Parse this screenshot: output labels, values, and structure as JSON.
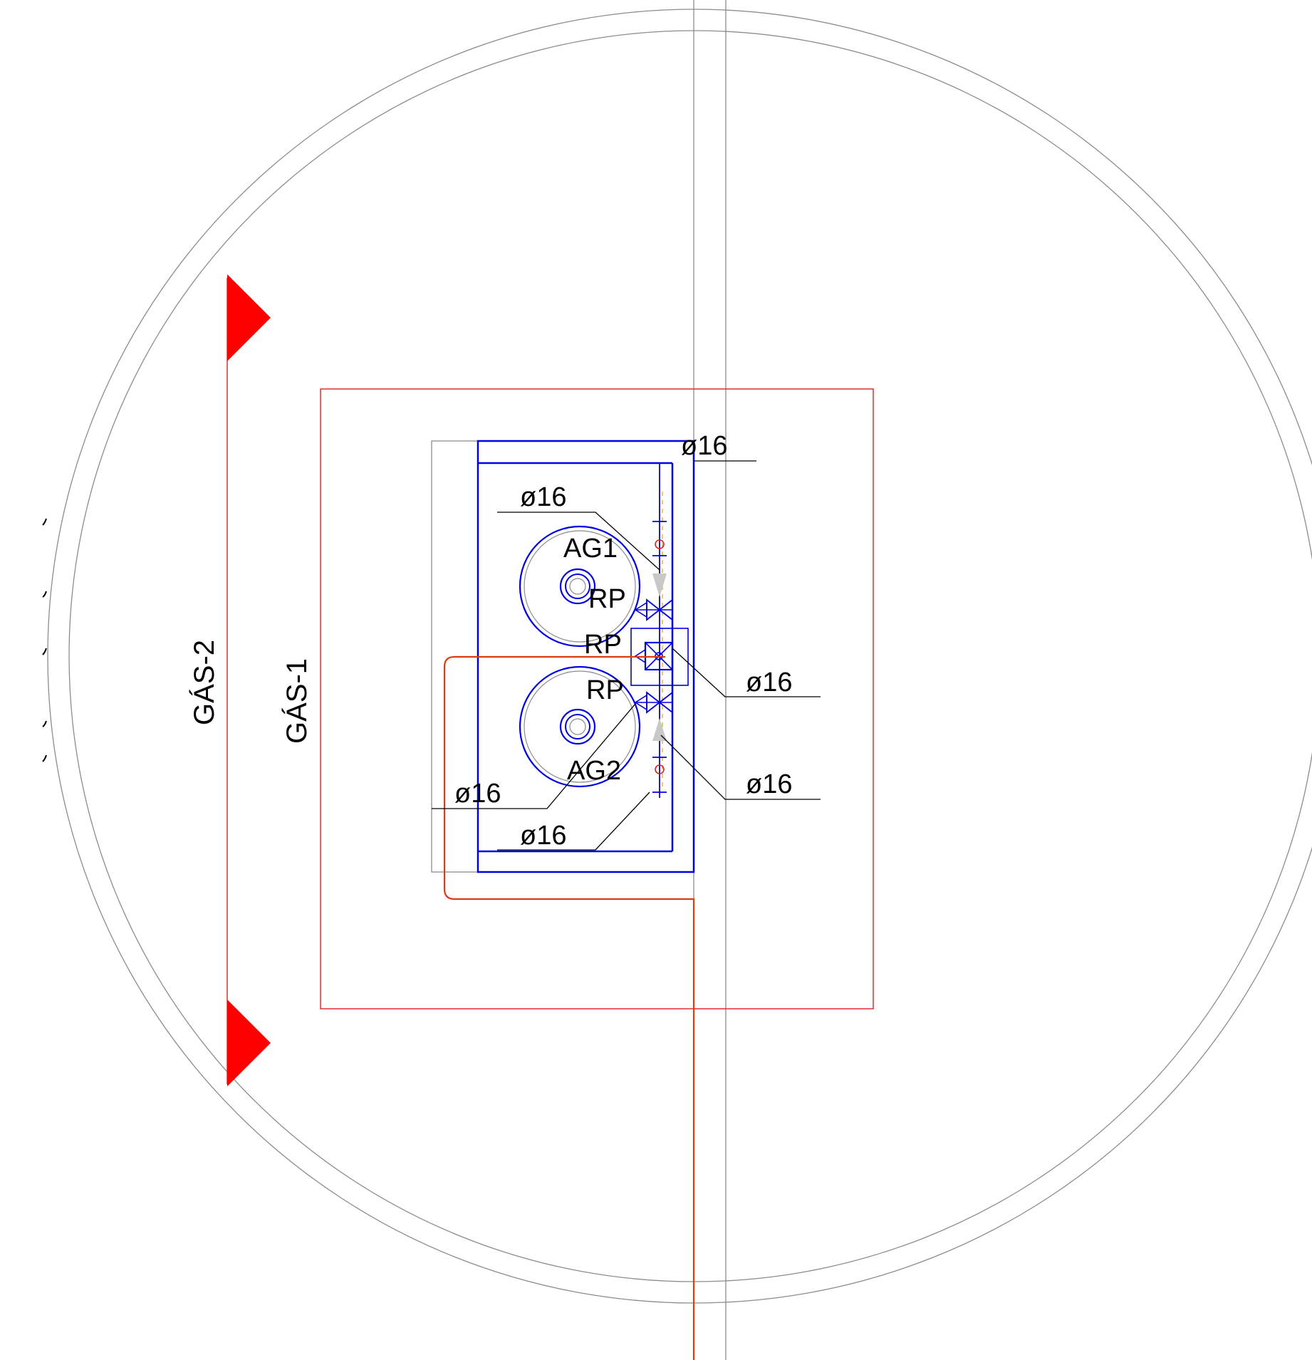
{
  "sections": {
    "gas_1": "GÁS-1",
    "gas_2": "GÁS-2"
  },
  "equipment": {
    "ag1": "AG1",
    "ag2": "AG2"
  },
  "valves": {
    "rp_1": "RP",
    "rp_2": "RP",
    "rp_3": "RP"
  },
  "dimensions": {
    "top": "ø16",
    "upper_left": "ø16",
    "middle_right": "ø16",
    "lower_right": "ø16",
    "lower_left": "ø16",
    "bottom": "ø16"
  },
  "colors": {
    "equipment": "#0000e6",
    "gas_line": "#e03a10",
    "section_marker": "#ff0000",
    "outline": "#e02020",
    "reference": "#8c8c8c",
    "leader": "#000000"
  }
}
